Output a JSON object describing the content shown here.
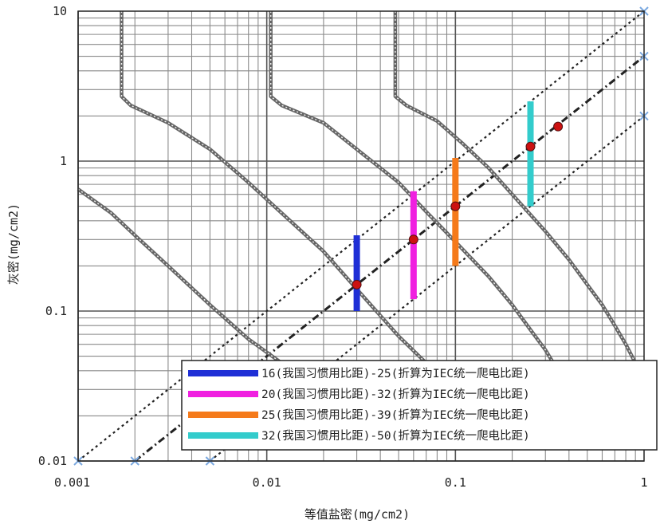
{
  "chart_data": {
    "type": "line",
    "xlabel": "等值盐密(mg/cm2)",
    "ylabel": "灰密(mg/cm2)",
    "x_scale": "log",
    "y_scale": "log",
    "xlim": [
      0.001,
      1
    ],
    "ylim": [
      0.01,
      10
    ],
    "grid": true,
    "x_ticks": [
      {
        "value": 0.001,
        "label": "0.001"
      },
      {
        "value": 0.01,
        "label": "0.01"
      },
      {
        "value": 0.1,
        "label": "0.1"
      },
      {
        "value": 1,
        "label": "1"
      }
    ],
    "y_ticks": [
      {
        "value": 0.01,
        "label": "0.01"
      },
      {
        "value": 0.1,
        "label": "0.1"
      },
      {
        "value": 1,
        "label": "1"
      },
      {
        "value": 10,
        "label": "10"
      }
    ],
    "ratio_lines": [
      {
        "ratio": 10,
        "style": "dotted",
        "color": "#222222"
      },
      {
        "ratio": 5,
        "style": "dashed",
        "color": "#222222"
      },
      {
        "ratio": 2,
        "style": "dotted",
        "color": "#222222"
      }
    ],
    "contours": [
      {
        "color": "#666666",
        "points": [
          [
            0.001,
            0.65
          ],
          [
            0.0015,
            0.45
          ],
          [
            0.002,
            0.32
          ],
          [
            0.003,
            0.2
          ],
          [
            0.005,
            0.11
          ],
          [
            0.008,
            0.065
          ],
          [
            0.012,
            0.045
          ],
          [
            0.017,
            0.037
          ],
          [
            0.022,
            0.032
          ]
        ]
      },
      {
        "color": "#666666",
        "points": [
          [
            0.0017,
            10
          ],
          [
            0.0017,
            2.7
          ],
          [
            0.0019,
            2.35
          ],
          [
            0.003,
            1.8
          ],
          [
            0.005,
            1.2
          ],
          [
            0.008,
            0.72
          ],
          [
            0.012,
            0.45
          ],
          [
            0.02,
            0.25
          ],
          [
            0.03,
            0.14
          ],
          [
            0.05,
            0.068
          ],
          [
            0.07,
            0.045
          ],
          [
            0.09,
            0.034
          ],
          [
            0.1,
            0.032
          ]
        ]
      },
      {
        "color": "#666666",
        "points": [
          [
            0.0105,
            10
          ],
          [
            0.0105,
            2.7
          ],
          [
            0.012,
            2.35
          ],
          [
            0.02,
            1.8
          ],
          [
            0.03,
            1.2
          ],
          [
            0.05,
            0.72
          ],
          [
            0.07,
            0.46
          ],
          [
            0.1,
            0.29
          ],
          [
            0.15,
            0.17
          ],
          [
            0.2,
            0.11
          ],
          [
            0.25,
            0.075
          ],
          [
            0.3,
            0.055
          ],
          [
            0.35,
            0.04
          ],
          [
            0.4,
            0.032
          ]
        ]
      },
      {
        "color": "#666666",
        "points": [
          [
            0.048,
            10
          ],
          [
            0.048,
            2.7
          ],
          [
            0.055,
            2.35
          ],
          [
            0.08,
            1.85
          ],
          [
            0.11,
            1.3
          ],
          [
            0.15,
            0.9
          ],
          [
            0.2,
            0.6
          ],
          [
            0.3,
            0.34
          ],
          [
            0.4,
            0.22
          ],
          [
            0.5,
            0.15
          ],
          [
            0.6,
            0.11
          ],
          [
            0.7,
            0.08
          ],
          [
            0.8,
            0.06
          ],
          [
            0.9,
            0.045
          ],
          [
            1,
            0.034
          ]
        ]
      }
    ],
    "series": [
      {
        "name": "16(我国习惯用比距)-25(折算为IEC统一爬电比距)",
        "color": "#1f2fd6",
        "x": 0.03,
        "y_low": 0.1,
        "y_high": 0.32,
        "point_y": 0.15
      },
      {
        "name": "20(我国习惯用比距)-32(折算为IEC统一爬电比距)",
        "color": "#f020e0",
        "x": 0.06,
        "y_low": 0.12,
        "y_high": 0.63,
        "point_y": 0.3
      },
      {
        "name": "25(我国习惯用比距)-39(折算为IEC统一爬电比距)",
        "color": "#f57a1a",
        "x": 0.1,
        "y_low": 0.2,
        "y_high": 1.05,
        "point_y": 0.5
      },
      {
        "name": "32(我国习惯用比距)-50(折算为IEC统一爬电比距)",
        "color": "#33cccc",
        "x": 0.25,
        "y_low": 0.5,
        "y_high": 2.5,
        "point_y": 1.25
      }
    ],
    "extra_points": [
      {
        "x": 0.35,
        "y": 1.7
      }
    ],
    "markers": {
      "point_color": "#cc1111",
      "end_marker_color": "#7aa8e0"
    },
    "legend_position": "bottom-right"
  }
}
